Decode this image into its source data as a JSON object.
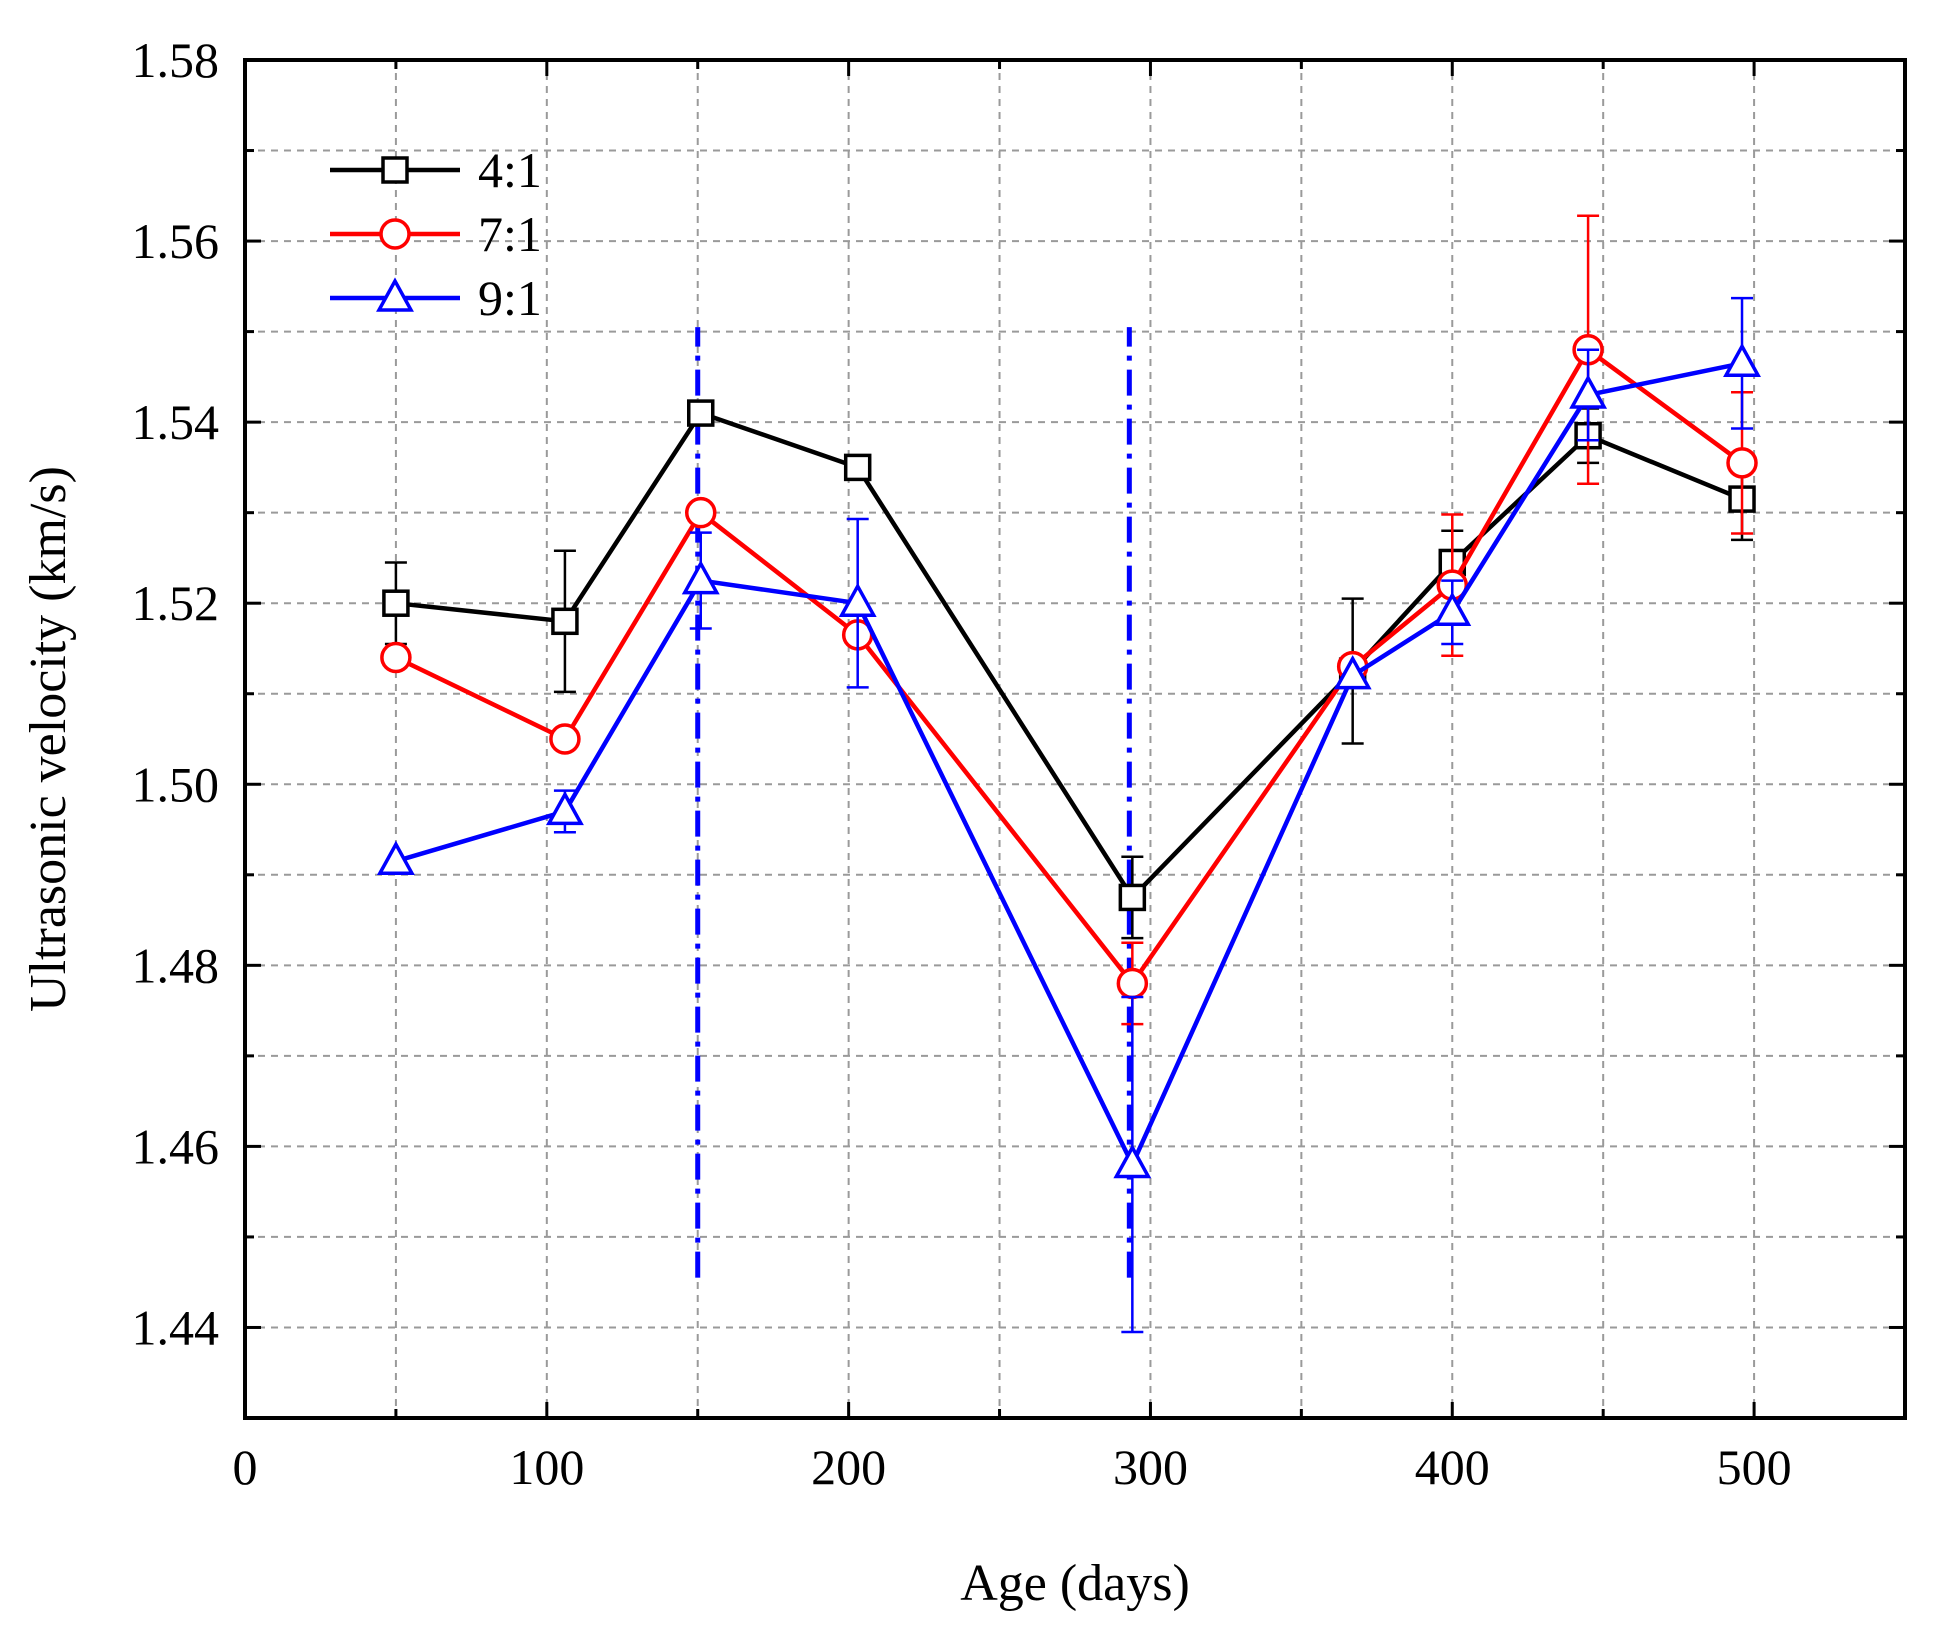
{
  "chart_data": {
    "type": "line",
    "xlabel": "Age (days)",
    "ylabel": "Ultrasonic velocity (km/s)",
    "xlim": [
      0,
      550
    ],
    "ylim": [
      1.43,
      1.58
    ],
    "xticks": [
      "0",
      "100",
      "200",
      "300",
      "400",
      "500"
    ],
    "yticks": [
      "1.44",
      "1.46",
      "1.48",
      "1.50",
      "1.52",
      "1.54",
      "1.56",
      "1.58"
    ],
    "grid": true,
    "legend_position": "top-left",
    "x": [
      50,
      106,
      151,
      203,
      294,
      367,
      400,
      445,
      496
    ],
    "series": [
      {
        "name": "4:1",
        "color": "#000000",
        "marker": "square",
        "values": [
          1.52,
          1.518,
          1.541,
          1.535,
          1.4875,
          1.5125,
          1.5245,
          1.5385,
          1.5315
        ],
        "error": [
          0.0045,
          0.0078,
          0.0,
          0.0,
          0.0045,
          0.008,
          0.0035,
          0.003,
          0.0045
        ]
      },
      {
        "name": "7:1",
        "color": "#ff0000",
        "marker": "circle",
        "values": [
          1.514,
          1.505,
          1.53,
          1.5165,
          1.478,
          1.513,
          1.522,
          1.548,
          1.5355
        ],
        "error": [
          0.0,
          0.0,
          0.0,
          0.0,
          0.0045,
          0.0,
          0.0078,
          0.0148,
          0.0078
        ]
      },
      {
        "name": "9:1",
        "color": "#0000ff",
        "marker": "triangle",
        "values": [
          1.4915,
          1.497,
          1.5225,
          1.52,
          1.458,
          1.512,
          1.519,
          1.543,
          1.5465
        ],
        "error": [
          0.0,
          0.0023,
          0.0053,
          0.0093,
          0.0185,
          0.0,
          0.0035,
          0.005,
          0.0072
        ]
      }
    ],
    "reference_lines": [
      {
        "x": 150,
        "y_from": 1.4455,
        "y_to": 1.5505,
        "color": "#0000ff",
        "style": "dash-dot"
      },
      {
        "x": 293,
        "y_from": 1.4455,
        "y_to": 1.5505,
        "color": "#0000ff",
        "style": "dash-dot"
      }
    ]
  }
}
